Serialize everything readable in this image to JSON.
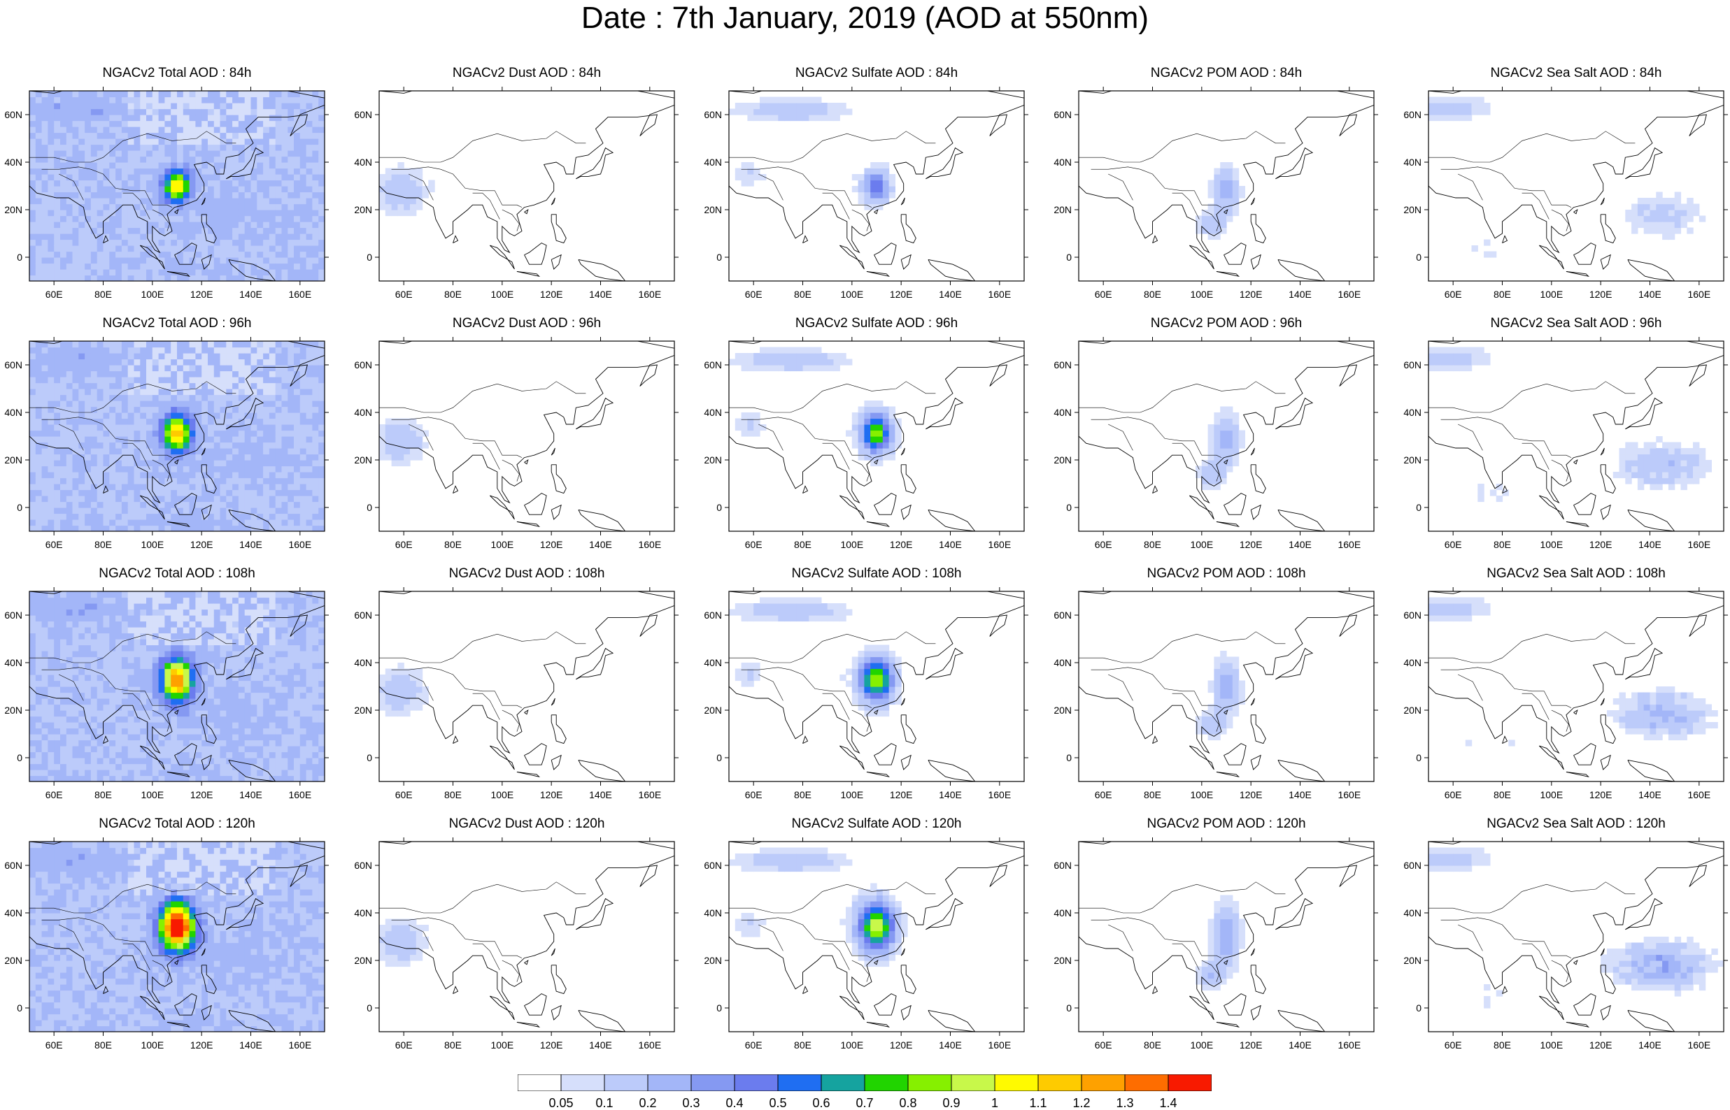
{
  "title": "Date : 7th January, 2019 (AOD at 550nm)",
  "lead_times": [
    "84h",
    "96h",
    "108h",
    "120h"
  ],
  "species": [
    "Total",
    "Dust",
    "Sulfate",
    "POM",
    "Sea Salt"
  ],
  "panel_titles": [
    [
      "NGACv2 Total AOD : 84h",
      "NGACv2 Dust AOD : 84h",
      "NGACv2 Sulfate AOD : 84h",
      "NGACv2 POM AOD : 84h",
      "NGACv2 Sea Salt AOD : 84h"
    ],
    [
      "NGACv2 Total AOD : 96h",
      "NGACv2 Dust AOD : 96h",
      "NGACv2 Sulfate AOD : 96h",
      "NGACv2 POM AOD : 96h",
      "NGACv2 Sea Salt AOD : 96h"
    ],
    [
      "NGACv2 Total AOD : 108h",
      "NGACv2 Dust AOD : 108h",
      "NGACv2 Sulfate AOD : 108h",
      "NGACv2 POM AOD : 108h",
      "NGACv2 Sea Salt AOD : 108h"
    ],
    [
      "NGACv2 Total AOD : 120h",
      "NGACv2 Dust AOD : 120h",
      "NGACv2 Sulfate AOD : 120h",
      "NGACv2 POM AOD : 120h",
      "NGACv2 Sea Salt  AOD : 120h"
    ]
  ],
  "map": {
    "lon_ticks": [
      "60E",
      "80E",
      "100E",
      "120E",
      "140E",
      "160E"
    ],
    "lon_values": [
      60,
      80,
      100,
      120,
      140,
      160
    ],
    "lat_ticks": [
      "60N",
      "40N",
      "20N",
      "0"
    ],
    "lat_values": [
      60,
      40,
      20,
      0
    ],
    "lon_range": [
      50,
      170
    ],
    "lat_range": [
      -10,
      70
    ]
  },
  "colorbar": {
    "labels": [
      "0.05",
      "0.1",
      "0.2",
      "0.3",
      "0.4",
      "0.5",
      "0.6",
      "0.7",
      "0.8",
      "0.9",
      "1",
      "1.1",
      "1.2",
      "1.3",
      "1.4"
    ],
    "colors": [
      "#ffffff",
      "#d6dffb",
      "#bccbfa",
      "#a3b6f8",
      "#8599f2",
      "#6b7cee",
      "#1f6ef2",
      "#15a39f",
      "#21d400",
      "#86f000",
      "#c8f84a",
      "#fffa00",
      "#fecb00",
      "#fea100",
      "#fe6d00",
      "#f81a00"
    ]
  },
  "fields": [
    {
      "species": "Total",
      "level_scale": [
        1.0,
        1.1,
        1.25,
        1.45
      ],
      "peak": [
        0.9,
        1.0,
        1.15,
        1.45
      ]
    },
    {
      "species": "Dust",
      "level_scale": [
        1.0,
        1.0,
        1.0,
        0.95
      ],
      "peak": [
        0.3,
        0.3,
        0.3,
        0.25
      ]
    },
    {
      "species": "Sulfate",
      "level_scale": [
        1.0,
        1.1,
        1.2,
        1.35
      ],
      "peak": [
        0.45,
        0.85,
        0.9,
        0.95
      ]
    },
    {
      "species": "POM",
      "level_scale": [
        1.0,
        1.1,
        1.2,
        1.3
      ],
      "peak": [
        0.25,
        0.25,
        0.25,
        0.3
      ]
    },
    {
      "species": "Sea Salt",
      "level_scale": [
        1.0,
        1.05,
        1.1,
        1.15
      ],
      "peak": [
        0.25,
        0.25,
        0.28,
        0.3
      ]
    }
  ]
}
